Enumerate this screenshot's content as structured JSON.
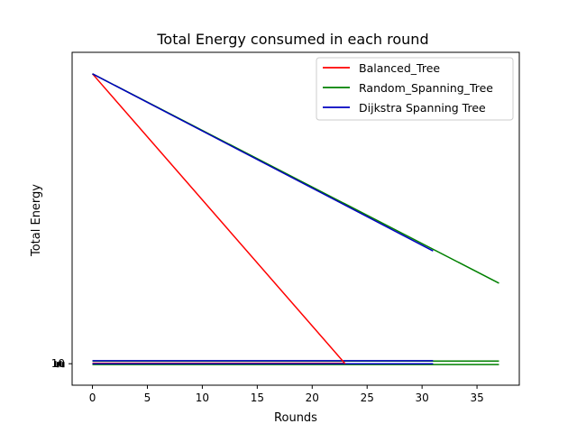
{
  "chart_data": {
    "type": "line",
    "title": "Total Energy consumed in each round",
    "xlabel": "Rounds",
    "ylabel": "Total Energy",
    "xlim": [
      -1.85,
      38.85
    ],
    "ylim": [
      -2,
      29
    ],
    "x_ticks": [
      0,
      5,
      10,
      15,
      20,
      25,
      30,
      35
    ],
    "y_tick_labels": [
      {
        "value": 0,
        "label": "10"
      }
    ],
    "legend_position": "top-right",
    "grid": false,
    "series": [
      {
        "name": "Balanced_Tree",
        "color": "#ff0000",
        "x": [
          0,
          23
        ],
        "y": [
          27,
          0
        ]
      },
      {
        "name": "Random_Spanning_Tree",
        "color": "#008000",
        "x": [
          0,
          37
        ],
        "y": [
          27,
          7.5
        ]
      },
      {
        "name": "Dijkstra Spanning Tree",
        "color": "#0000c0",
        "x": [
          0,
          31
        ],
        "y": [
          27,
          10.5
        ]
      }
    ],
    "baseline_lines": [
      {
        "color": "#ff0000",
        "x": [
          0,
          23
        ],
        "y": [
          0.05,
          0.05
        ]
      },
      {
        "color": "#000000",
        "x": [
          0,
          31
        ],
        "y": [
          -0.05,
          -0.05
        ]
      },
      {
        "color": "#008000",
        "x": [
          0,
          37
        ],
        "y": [
          0.25,
          0.25
        ]
      },
      {
        "color": "#008000",
        "x": [
          0,
          37
        ],
        "y": [
          -0.08,
          -0.08
        ]
      },
      {
        "color": "#0000c0",
        "x": [
          0,
          31
        ],
        "y": [
          0.28,
          0.28
        ]
      },
      {
        "color": "#0000c0",
        "x": [
          0,
          31
        ],
        "y": [
          0.0,
          0.0
        ]
      }
    ]
  }
}
